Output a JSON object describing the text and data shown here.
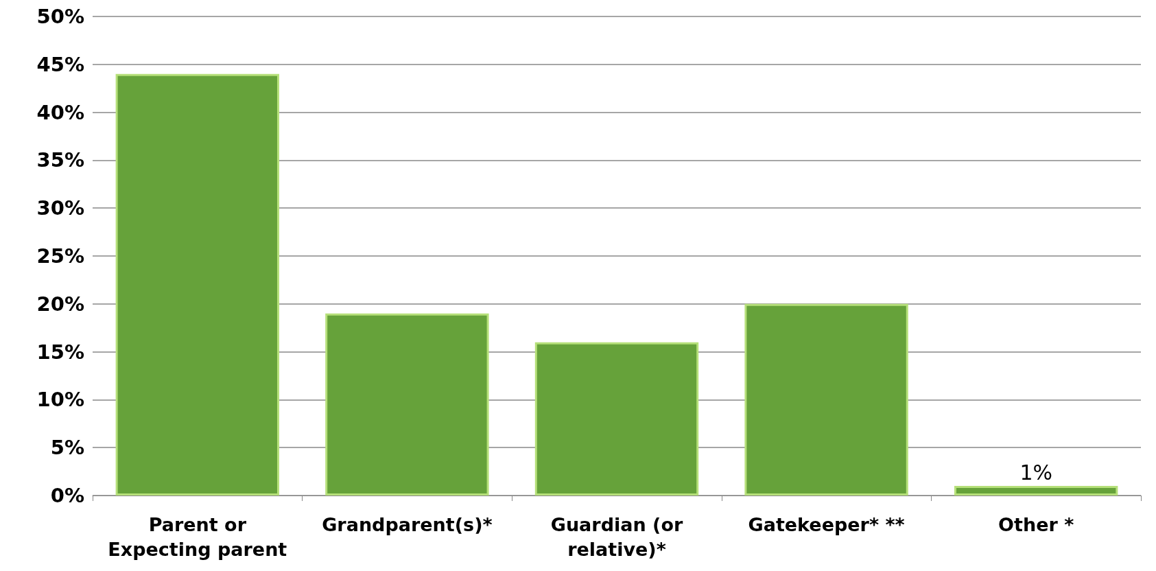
{
  "chart_data": {
    "type": "bar",
    "categories": [
      "Parent or\nExpecting parent",
      "Grandparent(s)*",
      "Guardian (or\nrelative)*",
      "Gatekeeper* **",
      "Other *"
    ],
    "values": [
      44,
      19,
      16,
      20,
      1
    ],
    "value_labels": [
      null,
      null,
      null,
      null,
      "1%"
    ],
    "color": "#66a23a",
    "ylim": [
      0,
      50
    ],
    "yticks": [
      {
        "value": 0,
        "label": "0%"
      },
      {
        "value": 5,
        "label": "5%"
      },
      {
        "value": 10,
        "label": "10%"
      },
      {
        "value": 15,
        "label": "15%"
      },
      {
        "value": 20,
        "label": "20%"
      },
      {
        "value": 25,
        "label": "25%"
      },
      {
        "value": 30,
        "label": "30%"
      },
      {
        "value": 35,
        "label": "35%"
      },
      {
        "value": 40,
        "label": "40%"
      },
      {
        "value": 45,
        "label": "45%"
      },
      {
        "value": 50,
        "label": "50%"
      }
    ],
    "grid": "y"
  }
}
